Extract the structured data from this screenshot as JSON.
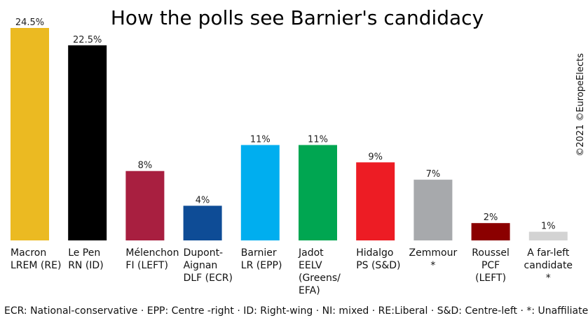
{
  "chart_data": {
    "type": "bar",
    "title": "How the polls see Barnier's candidacy",
    "copyright": "©2021 ©EuropeElects",
    "footer": "ECR: National-conservative · EPP: Centre -right · ID: Right-wing · NI: mixed · RE:Liberal · S&D: Centre-left · *: Unaffiliated",
    "ylim": [
      0,
      25
    ],
    "bars": [
      {
        "label_lines": [
          "Macron",
          "LREM (RE)"
        ],
        "value": 24.5,
        "value_label": "24.5%",
        "color": "#EBBA22"
      },
      {
        "label_lines": [
          "Le Pen",
          "RN (ID)"
        ],
        "value": 22.5,
        "value_label": "22.5%",
        "color": "#000000"
      },
      {
        "label_lines": [
          "Mélenchon",
          "FI (LEFT)"
        ],
        "value": 8,
        "value_label": "8%",
        "color": "#A81F40"
      },
      {
        "label_lines": [
          "Dupont-",
          "Aignan",
          "DLF (ECR)"
        ],
        "value": 4,
        "value_label": "4%",
        "color": "#0E4C96"
      },
      {
        "label_lines": [
          "Barnier",
          "LR (EPP)"
        ],
        "value": 11,
        "value_label": "11%",
        "color": "#00AEEF"
      },
      {
        "label_lines": [
          "Jadot",
          "EELV",
          "(Greens/",
          "EFA)"
        ],
        "value": 11,
        "value_label": "11%",
        "color": "#00A651"
      },
      {
        "label_lines": [
          "Hidalgo",
          "PS (S&D)"
        ],
        "value": 9,
        "value_label": "9%",
        "color": "#ED1C24"
      },
      {
        "label_lines": [
          "Zemmour",
          "*"
        ],
        "value": 7,
        "value_label": "7%",
        "color": "#A7A9AC"
      },
      {
        "label_lines": [
          "Roussel",
          "PCF",
          "(LEFT)"
        ],
        "value": 2,
        "value_label": "2%",
        "color": "#8B0000"
      },
      {
        "label_lines": [
          "A far-left",
          "candidate",
          "*"
        ],
        "value": 1,
        "value_label": "1%",
        "color": "#D3D3D3"
      }
    ]
  }
}
